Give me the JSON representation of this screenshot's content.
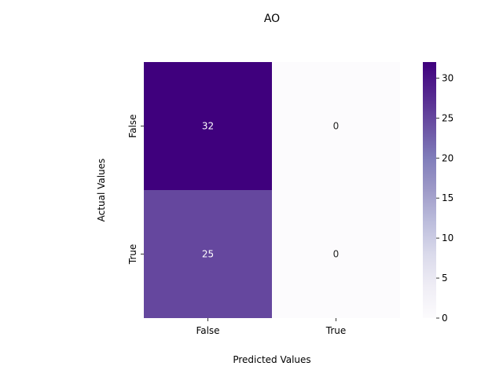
{
  "chart_data": {
    "type": "heatmap",
    "title": "AO",
    "xlabel": "Predicted Values",
    "ylabel": "Actual Values",
    "x_categories": [
      "False",
      "True"
    ],
    "y_categories": [
      "False",
      "True"
    ],
    "values": [
      [
        32,
        0
      ],
      [
        25,
        0
      ]
    ],
    "colorbar": {
      "min": 0,
      "max": 32,
      "ticks": [
        0,
        5,
        10,
        15,
        20,
        25,
        30
      ]
    },
    "colormap": "Purples",
    "colors": {
      "low": "#fcfbfd",
      "high": "#3f007d"
    }
  }
}
